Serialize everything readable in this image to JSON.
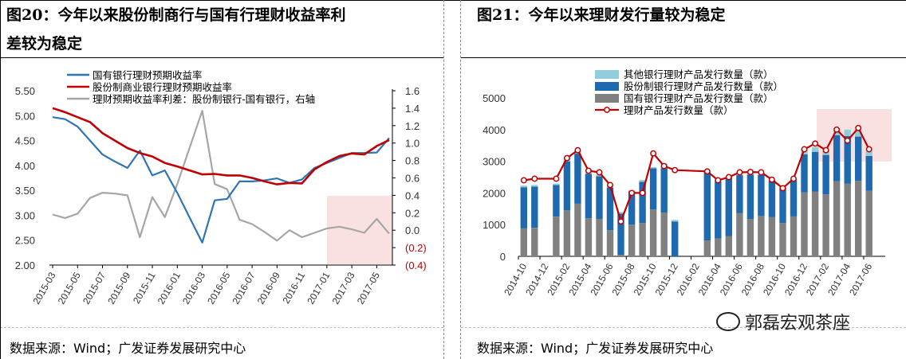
{
  "left": {
    "title_line1": "图20：今年以来股份制商行与国有行理财收益率利",
    "title_line2": "差较为稳定",
    "source": "数据来源：Wind；广发证券发展研究中心"
  },
  "right": {
    "title": "图21：今年以来理财发行量较为稳定",
    "source": "数据来源：Wind；广发证券发展研究中心"
  },
  "watermark": "郭磊宏观茶座",
  "chart_data": [
    {
      "type": "line",
      "ylim": [
        2.0,
        5.5
      ],
      "y2lim": [
        -0.4,
        1.6
      ],
      "yticks": [
        "5.50",
        "5.00",
        "4.50",
        "4.00",
        "3.50",
        "3.00",
        "2.50",
        "2.00"
      ],
      "y2ticks": [
        "1.6",
        "1.4",
        "1.2",
        "1.0",
        "0.8",
        "0.6",
        "0.4",
        "0.2",
        "0.0",
        "(0.2)",
        "(0.4)"
      ],
      "xticks": [
        "2015-03",
        "2015-05",
        "2015-07",
        "2015-09",
        "2015-11",
        "2016-01",
        "2016-03",
        "2016-05",
        "2016-07",
        "2016-09",
        "2016-11",
        "2017-01",
        "2017-03",
        "2017-05"
      ],
      "legend_position": "top",
      "series": [
        {
          "name": "国有银行理财预期收益率",
          "color": "#2E75B6",
          "axis": "left",
          "x": [
            0,
            1,
            2,
            3,
            4,
            5,
            6,
            7,
            8,
            9,
            10,
            11,
            12,
            13,
            14,
            15,
            16,
            17,
            18,
            19,
            20,
            21,
            22,
            23,
            24,
            25,
            26,
            27
          ],
          "values": [
            4.97,
            4.93,
            4.78,
            4.5,
            4.22,
            4.08,
            3.95,
            4.3,
            3.8,
            3.9,
            3.45,
            2.95,
            2.45,
            3.3,
            3.33,
            3.68,
            3.68,
            3.7,
            3.74,
            3.65,
            3.72,
            3.95,
            4.05,
            4.15,
            4.25,
            4.25,
            4.26,
            4.55
          ]
        },
        {
          "name": "股份制商业银行理财预期收益率",
          "color": "#C00000",
          "axis": "left",
          "x": [
            0,
            1,
            2,
            3,
            4,
            5,
            6,
            7,
            8,
            9,
            10,
            11,
            12,
            13,
            14,
            15,
            16,
            17,
            18,
            19,
            20,
            21,
            22,
            23,
            24,
            25,
            26,
            27
          ],
          "values": [
            5.15,
            5.07,
            4.97,
            4.87,
            4.65,
            4.5,
            4.35,
            4.25,
            4.18,
            4.05,
            3.98,
            3.9,
            3.82,
            3.83,
            3.8,
            3.8,
            3.75,
            3.68,
            3.62,
            3.65,
            3.64,
            3.92,
            4.07,
            4.19,
            4.24,
            4.22,
            4.39,
            4.51
          ]
        },
        {
          "name": "理财预期收益率利差：股份制银行-国有银行，右轴",
          "color": "#A6A6A6",
          "axis": "right",
          "x": [
            0,
            1,
            2,
            3,
            4,
            5,
            6,
            7,
            8,
            9,
            10,
            11,
            12,
            13,
            14,
            15,
            16,
            17,
            18,
            19,
            20,
            21,
            22,
            23,
            24,
            25,
            26,
            27
          ],
          "values": [
            0.18,
            0.14,
            0.19,
            0.37,
            0.43,
            0.42,
            0.4,
            -0.08,
            0.38,
            0.15,
            0.53,
            0.95,
            1.37,
            0.53,
            0.47,
            0.12,
            0.07,
            -0.02,
            -0.12,
            0.0,
            -0.08,
            -0.03,
            0.02,
            0.04,
            0.01,
            -0.03,
            0.13,
            -0.04
          ]
        }
      ]
    },
    {
      "type": "bar",
      "stacked": true,
      "ylim": [
        0,
        5000
      ],
      "yticks": [
        "5000",
        "4000",
        "3000",
        "2000",
        "1000",
        "0"
      ],
      "xticks": [
        "2014-10",
        "2014-12",
        "2015-02",
        "2015-04",
        "2015-06",
        "2015-08",
        "2015-10",
        "2015-12",
        "2016-02",
        "2016-04",
        "2016-06",
        "2016-08",
        "2016-10",
        "2016-12",
        "2017-02",
        "2017-04",
        "2017-06"
      ],
      "legend_position": "top",
      "categories": [
        "2014-10",
        "2014-11",
        "2015-01",
        "2015-02",
        "2015-03",
        "2015-04",
        "2015-05",
        "2015-06",
        "2015-07",
        "2015-08",
        "2015-09",
        "2015-10",
        "2015-11",
        "2015-12",
        "2016-03",
        "2016-04",
        "2016-05",
        "2016-06",
        "2016-07",
        "2016-08",
        "2016-09",
        "2016-10",
        "2016-11",
        "2016-12",
        "2017-01",
        "2017-02",
        "2017-03",
        "2017-04",
        "2017-05",
        "2017-06"
      ],
      "bar_x": [
        0,
        1,
        3,
        4,
        5,
        6,
        7,
        8,
        9,
        10,
        11,
        12,
        13,
        14,
        17,
        18,
        19,
        20,
        21,
        22,
        23,
        24,
        25,
        26,
        27,
        28,
        29,
        30,
        31,
        32
      ],
      "series": [
        {
          "name": "其他银行理财产品发行数量（款）",
          "color": "#92CDDC",
          "values": [
            50,
            50,
            50,
            100,
            100,
            140,
            50,
            60,
            50,
            30,
            60,
            40,
            150,
            50,
            30,
            70,
            50,
            90,
            80,
            80,
            30,
            40,
            40,
            160,
            150,
            150,
            180,
            200,
            200,
            150
          ]
        },
        {
          "name": "股份制银行理财产品发行数量（款）",
          "color": "#1F6AAE",
          "values": [
            1300,
            1300,
            1000,
            1550,
            1580,
            1400,
            1350,
            1350,
            1300,
            1050,
            1300,
            1300,
            1400,
            1100,
            2150,
            1800,
            1850,
            1200,
            1400,
            1300,
            1150,
            1100,
            1150,
            1200,
            1250,
            1250,
            1450,
            1500,
            1400,
            1100
          ]
        },
        {
          "name": "国有银行理财产品发行数量（款）",
          "color": "#808080",
          "values": [
            880,
            900,
            1250,
            1450,
            1660,
            1200,
            1180,
            820,
            50,
            1000,
            1050,
            1480,
            1380,
            0,
            500,
            560,
            640,
            1360,
            1180,
            1270,
            1240,
            1050,
            1260,
            2020,
            2050,
            1950,
            2370,
            2300,
            2380,
            2070
          ]
        },
        {
          "name": "理财产品发行数量（款）",
          "color": "#C00000",
          "type": "line",
          "values": [
            2400,
            2450,
            2450,
            3100,
            3350,
            2700,
            2650,
            2250,
            1100,
            2000,
            2000,
            3250,
            2850,
            2720,
            2680,
            2400,
            2500,
            2650,
            2660,
            2650,
            2420,
            2150,
            2450,
            3380,
            3560,
            3350,
            4000,
            3650,
            4050,
            3380
          ]
        }
      ]
    }
  ]
}
